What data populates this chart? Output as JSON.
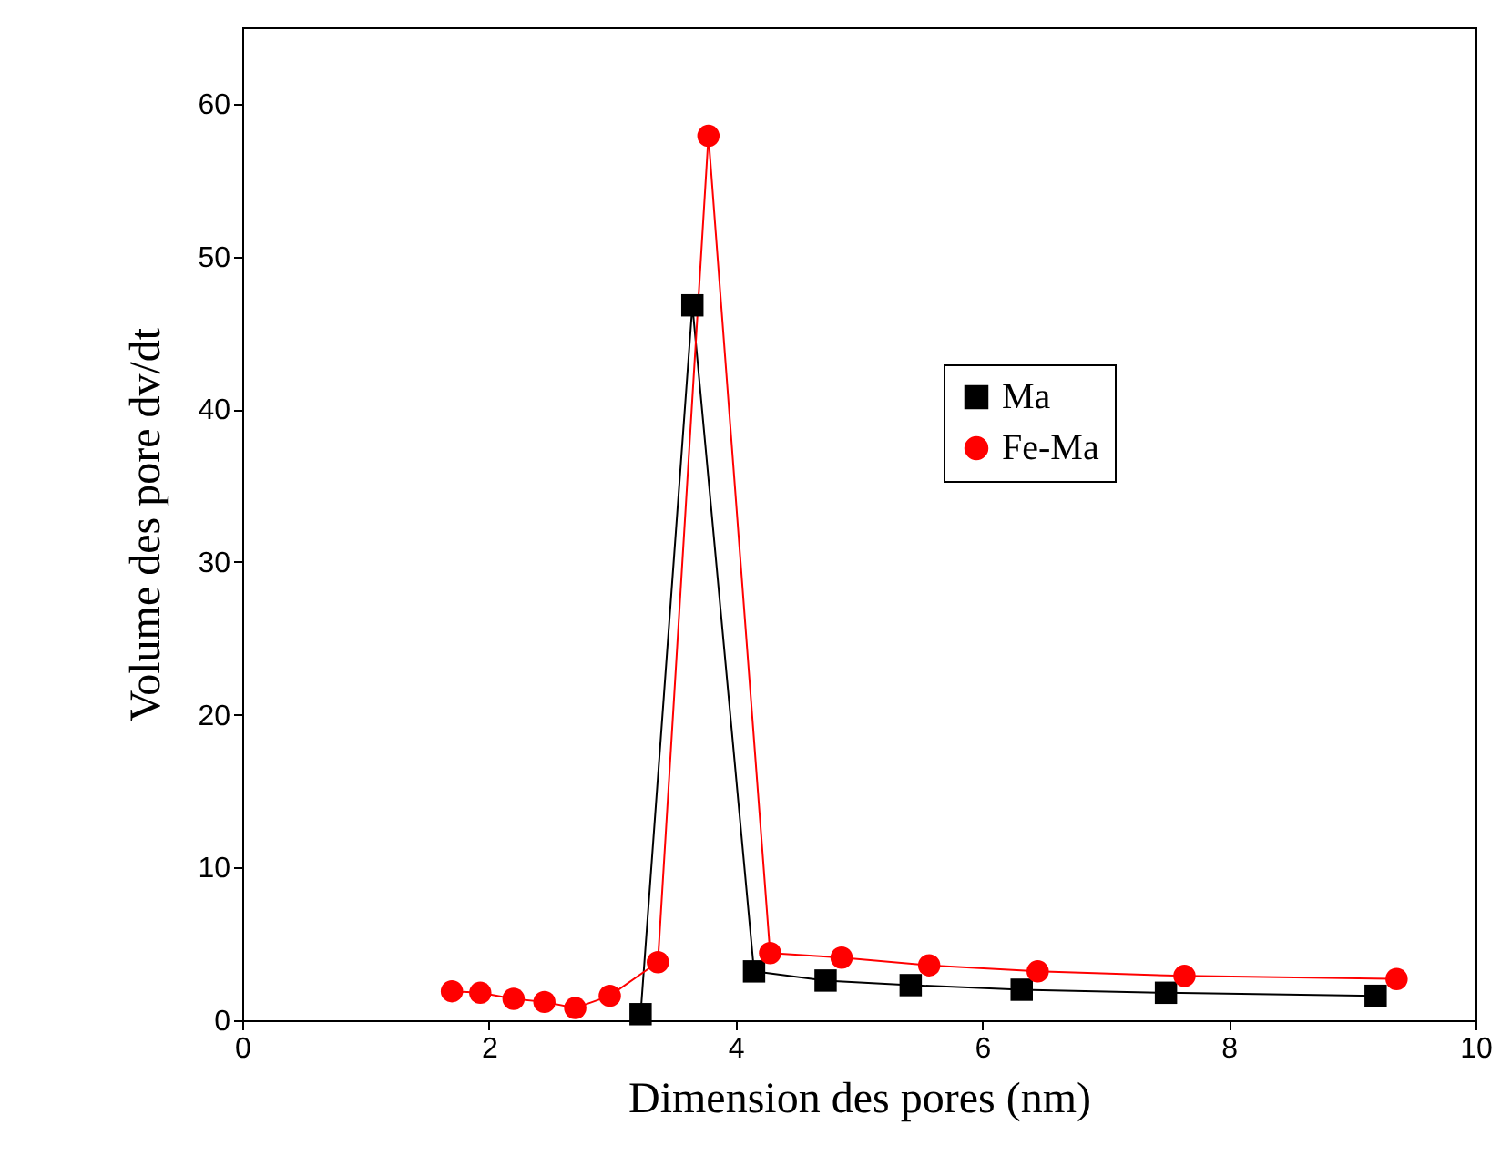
{
  "chart_data": {
    "type": "line",
    "xlabel": "Dimension des pores (nm)",
    "ylabel": "Volume des pore dv/dt",
    "xlim": [
      0,
      10
    ],
    "ylim": [
      0,
      65
    ],
    "xticks": [
      0,
      2,
      4,
      6,
      8,
      10
    ],
    "yticks": [
      0,
      10,
      20,
      30,
      40,
      50,
      60
    ],
    "grid": false,
    "legend": "top right",
    "line_style": "solid",
    "series": [
      {
        "name": "Ma",
        "color": "#000000",
        "marker": "square",
        "x": [
          3.23,
          3.65,
          4.15,
          4.73,
          5.42,
          6.32,
          7.49,
          9.19
        ],
        "values": [
          0.4,
          46.8,
          3.2,
          2.6,
          2.3,
          2.0,
          1.8,
          1.6
        ]
      },
      {
        "name": "Fe-Ma",
        "color": "#ff0000",
        "marker": "circle",
        "x": [
          1.7,
          1.93,
          2.2,
          2.45,
          2.7,
          2.98,
          3.37,
          3.78,
          4.28,
          4.86,
          5.57,
          6.45,
          7.64,
          9.36
        ],
        "values": [
          1.9,
          1.8,
          1.4,
          1.2,
          0.8,
          1.6,
          3.8,
          57.9,
          4.4,
          4.1,
          3.6,
          3.2,
          2.9,
          2.7
        ]
      }
    ]
  }
}
